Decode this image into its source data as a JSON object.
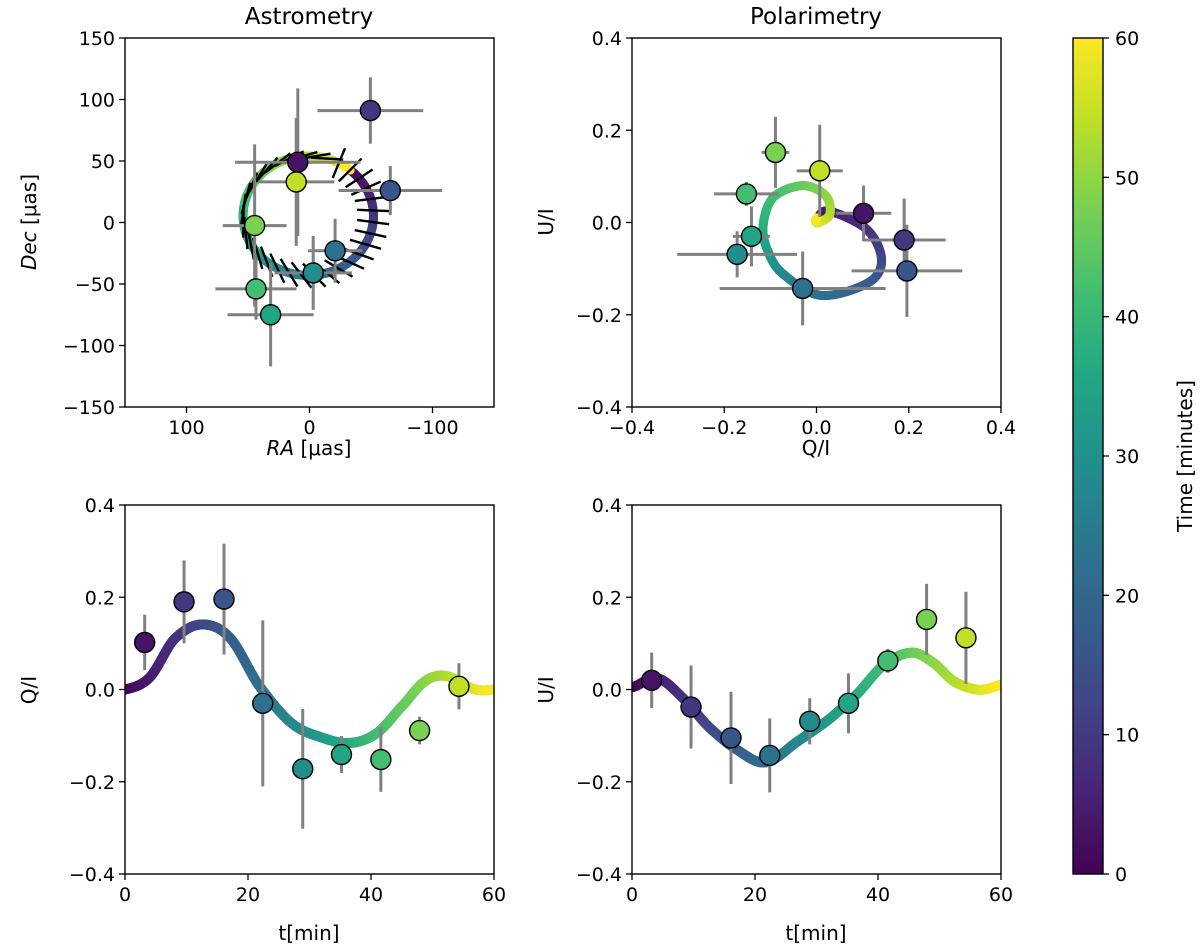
{
  "chart_data": [
    {
      "id": "astrometry",
      "type": "scatter",
      "title": "Astrometry",
      "xlabel_italic": "RA",
      "xlabel_unit": " [μas]",
      "ylabel_italic": "Dec",
      "ylabel_unit": " [μas]",
      "xlim": [
        150,
        -150
      ],
      "ylim": [
        -150,
        150
      ],
      "xticks": [
        100,
        0,
        -100
      ],
      "xtick_labels": [
        "100",
        "0",
        "−100"
      ],
      "yticks": [
        150,
        100,
        50,
        0,
        -50,
        -100,
        -150
      ],
      "ytick_labels": [
        "150",
        "100",
        "50",
        "0",
        "−50",
        "−100",
        "−150"
      ],
      "points": [
        {
          "t": 3.2,
          "x": 9.5,
          "y": 49,
          "ex": 51,
          "ey": 60
        },
        {
          "t": 9.6,
          "x": -49.5,
          "y": 91,
          "ex": 43,
          "ey": 27
        },
        {
          "t": 16.1,
          "x": -65.7,
          "y": 26,
          "ex": 42,
          "ey": 20
        },
        {
          "t": 22.4,
          "x": -20.8,
          "y": -23,
          "ex": 22,
          "ey": 26
        },
        {
          "t": 28.9,
          "x": -3,
          "y": -41,
          "ex": 31.5,
          "ey": 30
        },
        {
          "t": 35.2,
          "x": 31.6,
          "y": -75,
          "ex": 35,
          "ey": 42
        },
        {
          "t": 41.6,
          "x": 43.5,
          "y": -54,
          "ex": 33,
          "ey": 25
        },
        {
          "t": 47.9,
          "x": 44.6,
          "y": -2.5,
          "ex": 26,
          "ey": 66
        },
        {
          "t": 54.3,
          "x": 10.8,
          "y": 33,
          "ex": 31,
          "ey": 52
        }
      ],
      "orbit_model": {
        "center_ra": 1,
        "center_dec": 5.5,
        "radius_ra": 53,
        "radius_dec": 48.5,
        "start_angle_deg": 50,
        "period_min": 60,
        "direction": "clockwise"
      },
      "evpa_ticks": {
        "count": 32,
        "t_start": 0,
        "t_end": 58,
        "length_uas": 21
      }
    },
    {
      "id": "polarimetry",
      "type": "scatter",
      "title": "Polarimetry",
      "xlabel": "Q/I",
      "ylabel": "U/I",
      "xlim": [
        -0.4,
        0.4
      ],
      "ylim": [
        -0.4,
        0.4
      ],
      "xticks": [
        -0.4,
        -0.2,
        0,
        0.2,
        0.4
      ],
      "xtick_labels": [
        "−0.4",
        "−0.2",
        "0.0",
        "0.2",
        "0.4"
      ],
      "yticks": [
        0.4,
        0.2,
        0,
        -0.2,
        -0.4
      ],
      "ytick_labels": [
        "0.4",
        "0.2",
        "0.0",
        "−0.2",
        "−0.4"
      ]
    },
    {
      "id": "q-vs-time",
      "type": "line",
      "xlabel": "t[min]",
      "ylabel": "Q/I",
      "xlim": [
        0,
        60
      ],
      "ylim": [
        -0.4,
        0.4
      ],
      "xticks": [
        0,
        20,
        40,
        60
      ],
      "xtick_labels": [
        "0",
        "20",
        "40",
        "60"
      ],
      "yticks": [
        0.4,
        0.2,
        0,
        -0.2,
        -0.4
      ],
      "ytick_labels": [
        "0.4",
        "0.2",
        "0.0",
        "−0.2",
        "−0.4"
      ]
    },
    {
      "id": "u-vs-time",
      "type": "line",
      "xlabel": "t[min]",
      "ylabel": "U/I",
      "xlim": [
        0,
        60
      ],
      "ylim": [
        -0.4,
        0.4
      ],
      "xticks": [
        0,
        20,
        40,
        60
      ],
      "xtick_labels": [
        "0",
        "20",
        "40",
        "60"
      ],
      "yticks": [
        0.4,
        0.2,
        0,
        -0.2,
        -0.4
      ],
      "ytick_labels": [
        "0.4",
        "0.2",
        "0.0",
        "−0.2",
        "−0.4"
      ]
    }
  ],
  "polarization": {
    "model": {
      "t": [
        0,
        4,
        8,
        12.4,
        17,
        21.7,
        27,
        32,
        36.6,
        41,
        45.5,
        49,
        52.3,
        56,
        58,
        60
      ],
      "Q": [
        0,
        0.026,
        0.109,
        0.141,
        0.113,
        0.01,
        -0.072,
        -0.104,
        -0.116,
        -0.094,
        -0.03,
        0.02,
        0.029,
        0.005,
        -0.002,
        0
      ],
      "U": [
        0.005,
        0.025,
        -0.015,
        -0.08,
        -0.13,
        -0.158,
        -0.112,
        -0.065,
        -0.01,
        0.054,
        0.08,
        0.058,
        0.018,
        0.0,
        0.002,
        0.01
      ]
    },
    "points": [
      {
        "t": 3.2,
        "Q": 0.102,
        "eQ": 0.06,
        "U": 0.02,
        "eU": 0.06
      },
      {
        "t": 9.6,
        "Q": 0.19,
        "eQ": 0.09,
        "U": -0.038,
        "eU": 0.09
      },
      {
        "t": 16.1,
        "Q": 0.196,
        "eQ": 0.12,
        "U": -0.105,
        "eU": 0.1
      },
      {
        "t": 22.4,
        "Q": -0.03,
        "eQ": 0.18,
        "U": -0.143,
        "eU": 0.08
      },
      {
        "t": 28.9,
        "Q": -0.172,
        "eQ": 0.13,
        "U": -0.069,
        "eU": 0.05
      },
      {
        "t": 35.2,
        "Q": -0.141,
        "eQ": 0.04,
        "U": -0.03,
        "eU": 0.065
      },
      {
        "t": 41.6,
        "Q": -0.152,
        "eQ": 0.07,
        "U": 0.062,
        "eU": 0.026
      },
      {
        "t": 47.9,
        "Q": -0.089,
        "eQ": 0.03,
        "U": 0.152,
        "eU": 0.077
      },
      {
        "t": 54.3,
        "Q": 0.007,
        "eQ": 0.05,
        "U": 0.112,
        "eU": 0.1
      }
    ]
  },
  "colorbar": {
    "label": "Time [minutes]",
    "range": [
      0,
      60
    ],
    "ticks": [
      0,
      10,
      20,
      30,
      40,
      50,
      60
    ],
    "tick_labels": [
      "0",
      "10",
      "20",
      "30",
      "40",
      "50",
      "60"
    ],
    "colormap": "viridis"
  },
  "colors": {
    "errorbar": "#808080",
    "marker_edge": "#000000",
    "evpa_tick": "#000000",
    "viridis": [
      "#440154",
      "#482475",
      "#414487",
      "#355f8d",
      "#2a788e",
      "#21918c",
      "#22a884",
      "#44bf70",
      "#7ad151",
      "#bddf26",
      "#fde725"
    ]
  }
}
